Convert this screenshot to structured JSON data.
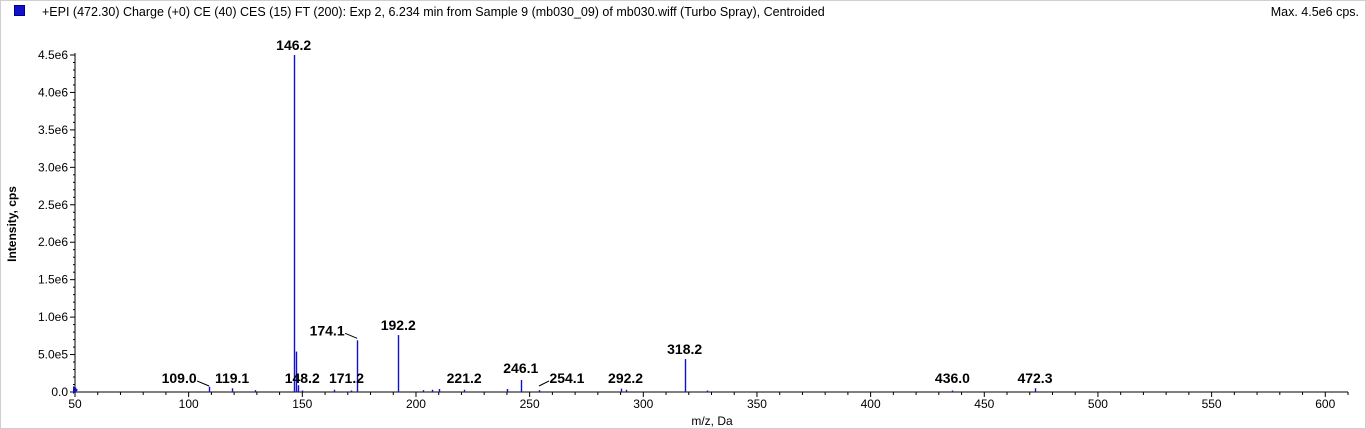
{
  "header": {
    "title": "+EPI (472.30) Charge (+0) CE (40) CES (15) FT (200): Exp 2, 6.234 min from Sample 9 (mb030_09) of mb030.wiff (Turbo Spray), Centroided",
    "max_label": "Max. 4.5e6 cps."
  },
  "colors": {
    "series": "#1111cc",
    "axis": "#000000",
    "label": "#000000"
  },
  "chart_data": {
    "type": "bar",
    "title": "+EPI (472.30) Charge (+0) CE (40) CES (15) FT (200): Exp 2, 6.234 min from Sample 9 (mb030_09) of mb030.wiff (Turbo Spray), Centroided",
    "xlabel": "m/z, Da",
    "ylabel": "Intensity, cps",
    "xlim": [
      50,
      610
    ],
    "ylim": [
      0,
      4500000.0
    ],
    "xticks": [
      50,
      100,
      150,
      200,
      250,
      300,
      350,
      400,
      450,
      500,
      550,
      600
    ],
    "yticks": [
      {
        "value": 0,
        "label": "0.0"
      },
      {
        "value": 500000,
        "label": "5.0e5"
      },
      {
        "value": 1000000,
        "label": "1.0e6"
      },
      {
        "value": 1500000,
        "label": "1.5e6"
      },
      {
        "value": 2000000,
        "label": "2.0e6"
      },
      {
        "value": 2500000,
        "label": "2.5e6"
      },
      {
        "value": 3000000,
        "label": "3.0e6"
      },
      {
        "value": 3500000,
        "label": "3.5e6"
      },
      {
        "value": 4000000,
        "label": "4.0e6"
      },
      {
        "value": 4500000,
        "label": "4.5e6"
      }
    ],
    "grid": false,
    "peaks": [
      {
        "mz": 50.0,
        "intensity": 60000
      },
      {
        "mz": 109.0,
        "intensity": 70000,
        "label": "109.0"
      },
      {
        "mz": 119.1,
        "intensity": 50000,
        "label": "119.1"
      },
      {
        "mz": 129.0,
        "intensity": 25000
      },
      {
        "mz": 146.2,
        "intensity": 4500000,
        "label": "146.2"
      },
      {
        "mz": 147.2,
        "intensity": 540000
      },
      {
        "mz": 148.2,
        "intensity": 90000,
        "label": "148.2"
      },
      {
        "mz": 150.0,
        "intensity": 20000
      },
      {
        "mz": 164.1,
        "intensity": 30000
      },
      {
        "mz": 171.2,
        "intensity": 20000,
        "label": "171.2"
      },
      {
        "mz": 174.1,
        "intensity": 690000,
        "label": "174.1"
      },
      {
        "mz": 192.2,
        "intensity": 760000,
        "label": "192.2"
      },
      {
        "mz": 203.0,
        "intensity": 25000
      },
      {
        "mz": 207.0,
        "intensity": 30000
      },
      {
        "mz": 210.0,
        "intensity": 40000
      },
      {
        "mz": 221.2,
        "intensity": 30000,
        "label": "221.2"
      },
      {
        "mz": 240.1,
        "intensity": 40000
      },
      {
        "mz": 246.1,
        "intensity": 160000,
        "label": "246.1"
      },
      {
        "mz": 254.1,
        "intensity": 25000,
        "label": "254.1"
      },
      {
        "mz": 290.0,
        "intensity": 45000
      },
      {
        "mz": 292.2,
        "intensity": 30000,
        "label": "292.2"
      },
      {
        "mz": 318.2,
        "intensity": 440000,
        "label": "318.2"
      },
      {
        "mz": 328.0,
        "intensity": 20000
      },
      {
        "mz": 436.0,
        "intensity": 20000,
        "label": "436.0"
      },
      {
        "mz": 472.3,
        "intensity": 50000,
        "label": "472.3"
      }
    ]
  }
}
